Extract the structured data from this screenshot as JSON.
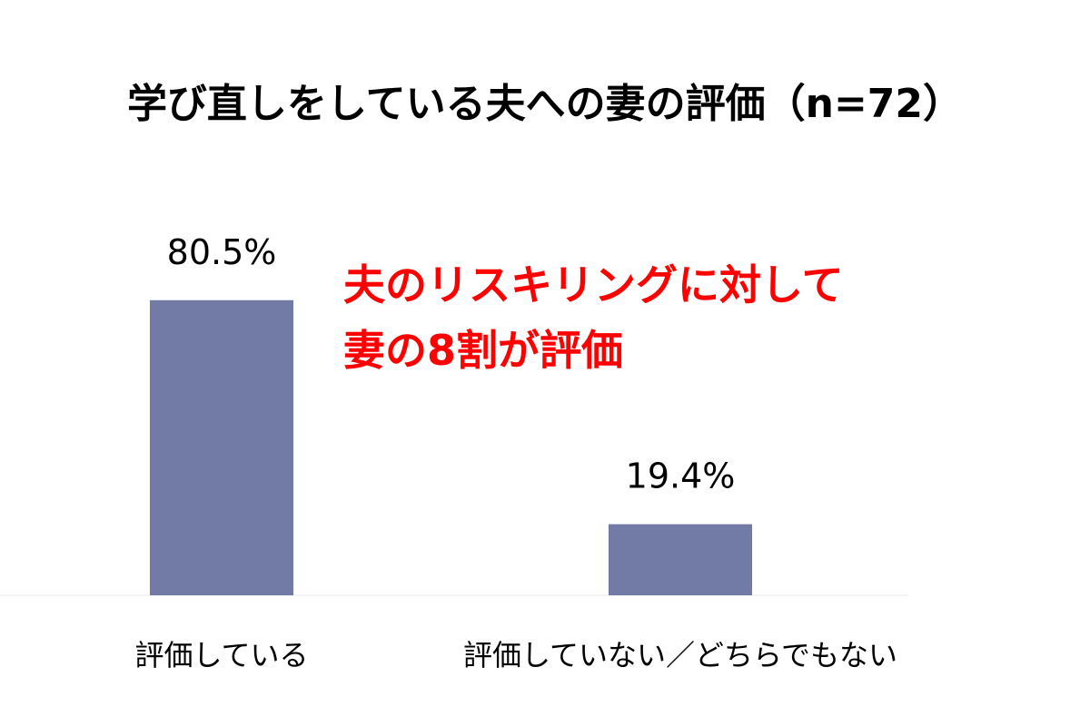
{
  "chart_data": {
    "type": "bar",
    "title": "学び直しをしている夫への妻の評価（n=72）",
    "categories": [
      "評価している",
      "評価していない／どちらでもない"
    ],
    "values": [
      80.5,
      19.4
    ],
    "value_labels": [
      "80.5%",
      "19.4%"
    ],
    "unit": "%",
    "ylim": [
      0,
      100
    ],
    "grid": false,
    "bar_color": "#717ba5",
    "annotation": {
      "lines": [
        "夫のリスキリングに対して",
        "妻の8割が評価"
      ],
      "color": "#ff0000"
    }
  }
}
